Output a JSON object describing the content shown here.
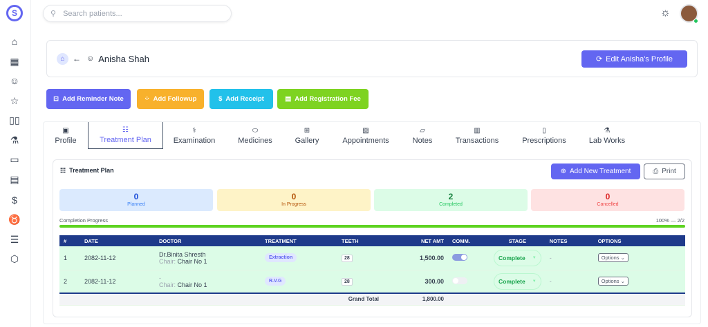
{
  "search": {
    "placeholder": "Search patients..."
  },
  "patient": {
    "name": "Anisha Shah",
    "edit_label": "Edit Anisha's Profile"
  },
  "actions": [
    {
      "label": "Add Reminder Note",
      "color": "#6366f1"
    },
    {
      "label": "Add Followup",
      "color": "#f8b12c"
    },
    {
      "label": "Add Receipt",
      "color": "#22c1ea"
    },
    {
      "label": "Add Registration Fee",
      "color": "#7ed321"
    }
  ],
  "tabs": [
    "Profile",
    "Treatment Plan",
    "Examination",
    "Medicines",
    "Gallery",
    "Appointments",
    "Notes",
    "Transactions",
    "Prescriptions",
    "Lab Works"
  ],
  "active_tab": "Treatment Plan",
  "plan": {
    "title": "Treatment Plan",
    "add_label": "Add New Treatment",
    "print_label": "Print",
    "stats": [
      {
        "value": "0",
        "label": "Planned"
      },
      {
        "value": "0",
        "label": "In Progress"
      },
      {
        "value": "2",
        "label": "Completed"
      },
      {
        "value": "0",
        "label": "Cancelled"
      }
    ],
    "progress_label": "Completion Progress",
    "progress_text": "100% — 2/2",
    "progress_percent": 100
  },
  "table": {
    "headers": [
      "#",
      "DATE",
      "DOCTOR",
      "TREATMENT",
      "TEETH",
      "NET AMT",
      "COMM.",
      "STAGE",
      "NOTES",
      "OPTIONS"
    ],
    "rows": [
      {
        "num": "1",
        "date": "2082-11-12",
        "doctor": "Dr.Binita Shresth",
        "chair_label": "Chair:",
        "chair": "Chair No 1",
        "treatment": "Extraction",
        "teeth": "28",
        "net": "1,500.00",
        "comm": true,
        "stage": "Complete",
        "notes": "-",
        "options": "Options"
      },
      {
        "num": "2",
        "date": "2082-11-12",
        "doctor": "-",
        "chair_label": "Chair:",
        "chair": "Chair No 1",
        "treatment": "R.V.G",
        "teeth": "28",
        "net": "300.00",
        "comm": false,
        "stage": "Complete",
        "notes": "-",
        "options": "Options"
      }
    ],
    "total_label": "Grand Total",
    "total": "1,800.00"
  }
}
